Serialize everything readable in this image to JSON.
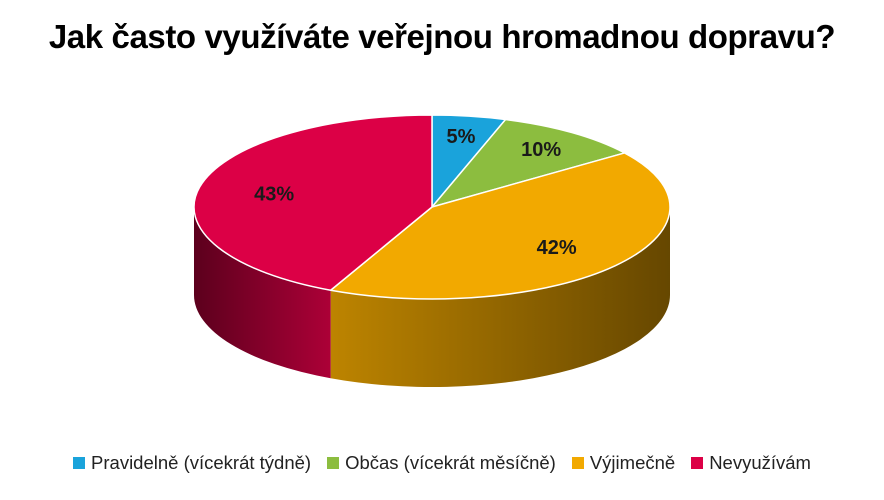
{
  "chart_data": {
    "type": "pie",
    "title": "Jak často využíváte veřejnou hromadnou dopravu?",
    "three_d": true,
    "legend_position": "bottom",
    "slices": [
      {
        "label": "Pravidelně (vícekrát týdně)",
        "value": 5,
        "data_label": "5%",
        "color": "#1aa3db"
      },
      {
        "label": "Občas (vícekrát měsíčně)",
        "value": 10,
        "data_label": "10%",
        "color": "#8cbd3f"
      },
      {
        "label": "Výjimečně",
        "value": 42,
        "data_label": "42%",
        "color": "#f2a900"
      },
      {
        "label": "Nevyužívám",
        "value": 43,
        "data_label": "43%",
        "color": "#dc0046"
      }
    ]
  }
}
